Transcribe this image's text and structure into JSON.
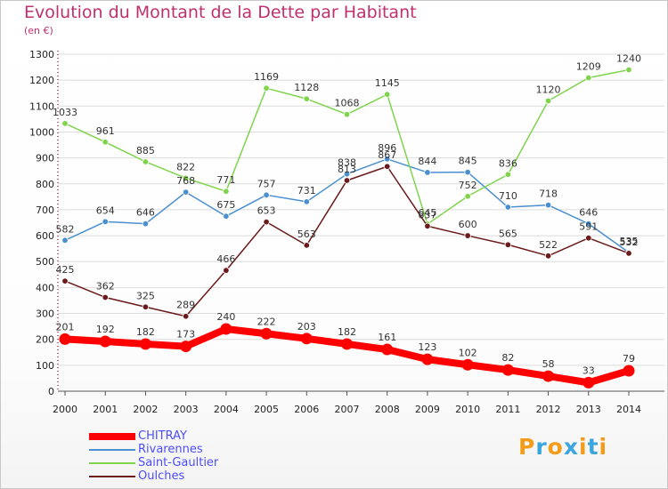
{
  "title": "Evolution du Montant de la Dette par Habitant",
  "subtitle": "(en €)",
  "brand": {
    "letters": [
      "P",
      "r",
      "o",
      "x",
      "i",
      "t",
      "i"
    ],
    "colors": [
      "#f39c1a",
      "#3aa6dd",
      "#f39c1a",
      "#3aa6dd",
      "#f39c1a",
      "#3aa6dd",
      "#f39c1a"
    ]
  },
  "chart_data": {
    "type": "line",
    "title": "Evolution du Montant de la Dette par Habitant",
    "ylabel": "(en €)",
    "xlabel": "",
    "ylim": [
      0,
      1300
    ],
    "yticks": [
      0,
      100,
      200,
      300,
      400,
      500,
      600,
      700,
      800,
      900,
      1000,
      1100,
      1200,
      1300
    ],
    "x": [
      "2000",
      "2001",
      "2002",
      "2003",
      "2004",
      "2005",
      "2006",
      "2007",
      "2008",
      "2009",
      "2010",
      "2011",
      "2012",
      "2013",
      "2014"
    ],
    "grid": "horizontal",
    "legend": "bottom-left",
    "series": [
      {
        "name": "CHITRAY",
        "color": "#ff0000",
        "values": [
          201,
          192,
          182,
          173,
          240,
          222,
          203,
          182,
          161,
          123,
          102,
          82,
          58,
          33,
          79
        ]
      },
      {
        "name": "Rivarennes",
        "color": "#4a8fd0",
        "values": [
          582,
          654,
          646,
          768,
          675,
          757,
          731,
          838,
          896,
          844,
          845,
          710,
          718,
          646,
          535
        ]
      },
      {
        "name": "Saint-Gaultier",
        "color": "#7fd44c",
        "values": [
          1033,
          961,
          885,
          822,
          771,
          1169,
          1128,
          1068,
          1145,
          645,
          752,
          836,
          1120,
          1209,
          1240
        ]
      },
      {
        "name": "Oulches",
        "color": "#6a1a1a",
        "values": [
          425,
          362,
          325,
          289,
          466,
          653,
          563,
          813,
          867,
          637,
          600,
          565,
          522,
          591,
          532
        ]
      }
    ]
  }
}
